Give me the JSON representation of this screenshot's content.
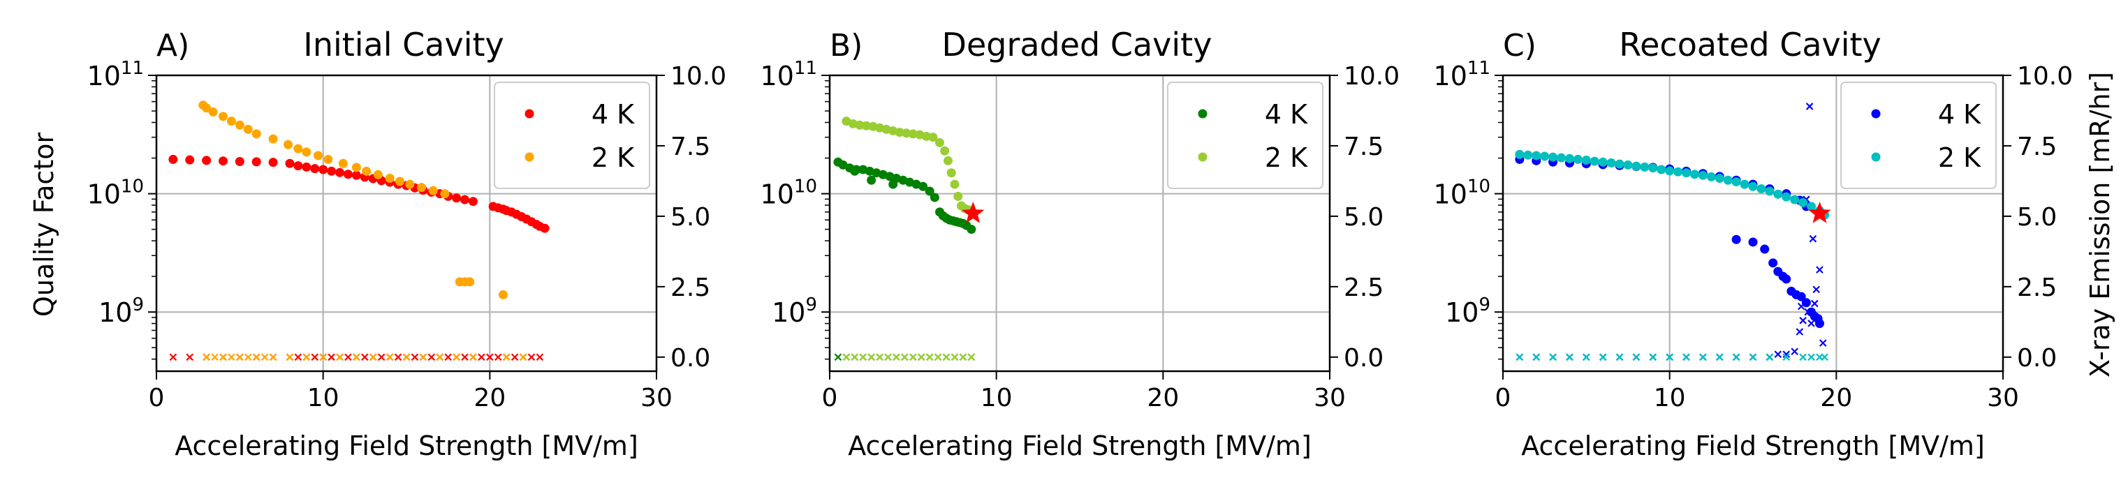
{
  "figure": {
    "y_left_label": "Quality Factor",
    "y_right_label": "X-ray Emission [mR/hr]"
  },
  "chart_data": [
    {
      "type": "scatter",
      "panel_letter": "A)",
      "title": "Initial Cavity",
      "xlabel": "Accelerating Field Strength [MV/m]",
      "xlim": [
        0,
        30
      ],
      "x_ticks": [
        "0",
        "10",
        "20",
        "30"
      ],
      "ylim_log10": [
        8.5,
        11
      ],
      "y_left_ticks": [
        "10^9",
        "10^10",
        "10^11"
      ],
      "y2lim": [
        -0.5,
        10
      ],
      "y_right_ticks": [
        "0.0",
        "2.5",
        "5.0",
        "7.5",
        "10.0"
      ],
      "grid": true,
      "legend_position": "top-right",
      "series": [
        {
          "name": "4 K",
          "color": "#ff0000",
          "q0_field": [
            1.0,
            2.0,
            3.0,
            4.0,
            5.0,
            6.0,
            7.0,
            8.0,
            8.5,
            9.0,
            9.5,
            10.0,
            10.5,
            11.0,
            11.5,
            12.0,
            12.5,
            13.0,
            13.5,
            14.0,
            14.5,
            15.0,
            15.5,
            16.0,
            16.5,
            17.0,
            17.5,
            18.0,
            18.5,
            19.0,
            20.2,
            20.5,
            20.8,
            21.0,
            21.3,
            21.6,
            21.9,
            22.2,
            22.5,
            22.8,
            23.0,
            23.3
          ],
          "q0_values": [
            19500000000.0,
            19300000000.0,
            19100000000.0,
            18900000000.0,
            18700000000.0,
            18600000000.0,
            18400000000.0,
            18000000000.0,
            17200000000.0,
            16800000000.0,
            16300000000.0,
            16000000000.0,
            15500000000.0,
            15100000000.0,
            14600000000.0,
            14300000000.0,
            13800000000.0,
            13400000000.0,
            12900000000.0,
            12500000000.0,
            12000000000.0,
            11700000000.0,
            11200000000.0,
            10700000000.0,
            10300000000.0,
            10000000000.0,
            9500000000.0,
            9200000000.0,
            8900000000.0,
            8600000000.0,
            7800000000.0,
            7600000000.0,
            7400000000.0,
            7200000000.0,
            7000000000.0,
            6700000000.0,
            6400000000.0,
            6100000000.0,
            5800000000.0,
            5500000000.0,
            5300000000.0,
            5100000000.0
          ],
          "xray_field": [
            1.0,
            2.0,
            3.0,
            4.0,
            5.0,
            6.0,
            7.0,
            8.0,
            8.5,
            9.0,
            9.5,
            10.0,
            10.5,
            11.0,
            11.5,
            12.0,
            12.5,
            13.0,
            13.5,
            14.0,
            14.5,
            15.0,
            15.5,
            16.0,
            16.5,
            17.0,
            17.5,
            18.0,
            18.5,
            19.0,
            19.5,
            20.0,
            20.5,
            21.0,
            21.5,
            22.0,
            22.5,
            23.0
          ],
          "xray_values": [
            0,
            0,
            0,
            0,
            0,
            0,
            0,
            0,
            0,
            0,
            0,
            0,
            0,
            0,
            0,
            0,
            0,
            0,
            0,
            0,
            0,
            0,
            0,
            0,
            0,
            0,
            0,
            0,
            0,
            0,
            0,
            0,
            0,
            0,
            0,
            0,
            0,
            0
          ]
        },
        {
          "name": "2 K",
          "color": "#ffa500",
          "q0_field": [
            2.8,
            3.0,
            3.4,
            4.0,
            4.5,
            5.0,
            5.5,
            6.0,
            7.0,
            7.9,
            8.5,
            9.0,
            9.7,
            10.3,
            11.2,
            12.0,
            12.6,
            13.3,
            14.0,
            14.6,
            15.2,
            15.9,
            16.6,
            17.3,
            18.2,
            18.5,
            18.8,
            20.8
          ],
          "q0_values": [
            56000000000.0,
            53000000000.0,
            49000000000.0,
            45000000000.0,
            41000000000.0,
            38000000000.0,
            35000000000.0,
            32000000000.0,
            29000000000.0,
            26000000000.0,
            24000000000.0,
            22500000000.0,
            21000000000.0,
            19500000000.0,
            18000000000.0,
            16700000000.0,
            15500000000.0,
            14500000000.0,
            13500000000.0,
            12700000000.0,
            12000000000.0,
            11300000000.0,
            10600000000.0,
            10000000000.0,
            1800000000.0,
            1800000000.0,
            1800000000.0,
            1400000000.0
          ],
          "xray_field": [
            3.0,
            3.5,
            4.0,
            4.5,
            5.0,
            5.5,
            6.0,
            6.5,
            7.0,
            8.0,
            9.0,
            10.0,
            11.0,
            12.0,
            13.0,
            14.0,
            15.0,
            16.0,
            17.0,
            18.0,
            19.0,
            21.0,
            22.0
          ],
          "xray_values": [
            0,
            0,
            0,
            0,
            0,
            0,
            0,
            0,
            0,
            0,
            0,
            0,
            0,
            0,
            0,
            0,
            0,
            0,
            0,
            0,
            0,
            0,
            0
          ]
        }
      ],
      "markers": []
    },
    {
      "type": "scatter",
      "panel_letter": "B)",
      "title": "Degraded Cavity",
      "xlabel": "Accelerating Field Strength [MV/m]",
      "xlim": [
        0,
        30
      ],
      "x_ticks": [
        "0",
        "10",
        "20",
        "30"
      ],
      "ylim_log10": [
        8.5,
        11
      ],
      "y_left_ticks": [
        "10^9",
        "10^10",
        "10^11"
      ],
      "y2lim": [
        -0.5,
        10
      ],
      "y_right_ticks": [
        "0.0",
        "2.5",
        "5.0",
        "7.5",
        "10.0"
      ],
      "grid": true,
      "legend_position": "top-right",
      "series": [
        {
          "name": "4 K",
          "color": "#008000",
          "q0_field": [
            0.5,
            0.8,
            1.2,
            1.6,
            2.0,
            2.4,
            2.8,
            3.2,
            3.6,
            4.0,
            4.4,
            4.8,
            5.2,
            5.6,
            6.0,
            6.3,
            6.6,
            6.8,
            7.0,
            7.2,
            7.4,
            7.6,
            7.8,
            8.0,
            8.2,
            8.5,
            2.5,
            3.8,
            1.5
          ],
          "q0_values": [
            18500000000.0,
            17500000000.0,
            16500000000.0,
            16000000000.0,
            16000000000.0,
            15500000000.0,
            15000000000.0,
            14500000000.0,
            14000000000.0,
            13500000000.0,
            13000000000.0,
            12500000000.0,
            12000000000.0,
            11500000000.0,
            10500000000.0,
            9300000000.0,
            7000000000.0,
            6500000000.0,
            6200000000.0,
            6000000000.0,
            5900000000.0,
            5800000000.0,
            5700000000.0,
            5600000000.0,
            5400000000.0,
            5000000000.0,
            13000000000.0,
            12000000000.0,
            15500000000.0
          ],
          "xray_field": [
            0.5,
            1.0,
            1.5,
            2.0,
            2.5,
            3.0,
            3.5,
            4.0,
            4.5,
            5.0,
            5.5,
            6.0,
            6.5,
            7.0,
            7.5,
            8.0,
            8.5
          ],
          "xray_values": [
            0,
            0,
            0,
            0,
            0,
            0,
            0,
            0,
            0,
            0,
            0,
            0,
            0,
            0,
            0,
            0,
            0
          ]
        },
        {
          "name": "2 K",
          "color": "#9acd32",
          "q0_field": [
            1.0,
            1.4,
            1.8,
            2.2,
            2.6,
            3.0,
            3.4,
            3.8,
            4.2,
            4.6,
            5.0,
            5.4,
            5.8,
            6.2,
            6.6,
            6.9,
            7.1,
            7.3,
            7.5,
            7.7,
            7.9,
            8.1,
            8.3,
            8.5
          ],
          "q0_values": [
            41000000000.0,
            39000000000.0,
            38000000000.0,
            37500000000.0,
            37000000000.0,
            36000000000.0,
            35000000000.0,
            34000000000.0,
            33000000000.0,
            32500000000.0,
            32000000000.0,
            31500000000.0,
            30500000000.0,
            30000000000.0,
            27000000000.0,
            23000000000.0,
            19000000000.0,
            15000000000.0,
            12000000000.0,
            9500000000.0,
            7900000000.0,
            7500000000.0,
            7300000000.0,
            7200000000.0
          ],
          "xray_field": [
            1.0,
            1.5,
            2.0,
            2.5,
            3.0,
            3.5,
            4.0,
            4.5,
            5.0,
            5.5,
            6.0,
            6.5,
            7.0,
            7.5,
            8.0,
            8.5
          ],
          "xray_values": [
            0,
            0,
            0,
            0,
            0,
            0,
            0,
            0,
            0,
            0,
            0,
            0,
            0,
            0,
            0,
            0
          ]
        }
      ],
      "markers": [
        {
          "x": 8.6,
          "q0": 6800000000.0,
          "color": "#ff0000",
          "symbol": "star"
        }
      ]
    },
    {
      "type": "scatter",
      "panel_letter": "C)",
      "title": "Recoated Cavity",
      "xlabel": "Accelerating Field Strength [MV/m]",
      "xlim": [
        0,
        30
      ],
      "x_ticks": [
        "0",
        "10",
        "20",
        "30"
      ],
      "ylim_log10": [
        8.5,
        11
      ],
      "y_left_ticks": [
        "10^9",
        "10^10",
        "10^11"
      ],
      "y2lim": [
        -0.5,
        10
      ],
      "y_right_ticks": [
        "0.0",
        "2.5",
        "5.0",
        "7.5",
        "10.0"
      ],
      "grid": true,
      "legend_position": "top-right",
      "series": [
        {
          "name": "4 K",
          "color": "#0000ff",
          "q0_field": [
            1.0,
            2.0,
            3.0,
            4.0,
            5.0,
            6.0,
            7.0,
            8.0,
            9.0,
            10.0,
            11.0,
            12.0,
            13.0,
            14.0,
            15.0,
            16.0,
            17.0,
            17.8,
            18.2,
            14.0,
            15.0,
            15.7,
            16.2,
            16.5,
            16.8,
            17.0,
            17.3,
            17.6,
            17.9,
            18.2,
            18.5,
            18.7,
            18.9,
            19.0
          ],
          "q0_values": [
            19500000000.0,
            19000000000.0,
            18500000000.0,
            18200000000.0,
            17900000000.0,
            17600000000.0,
            17300000000.0,
            17000000000.0,
            16700000000.0,
            16200000000.0,
            15500000000.0,
            14800000000.0,
            14000000000.0,
            13000000000.0,
            12000000000.0,
            11000000000.0,
            10000000000.0,
            8800000000.0,
            7800000000.0,
            4100000000.0,
            3900000000.0,
            3400000000.0,
            2600000000.0,
            2200000000.0,
            2000000000.0,
            1900000000.0,
            1500000000.0,
            1400000000.0,
            1350000000.0,
            1200000000.0,
            1000000000.0,
            920000000.0,
            880000000.0,
            800000000.0
          ],
          "xray_field": [
            1.0,
            2.0,
            3.0,
            4.0,
            5.0,
            6.0,
            7.0,
            8.0,
            9.0,
            10.0,
            11.0,
            12.0,
            13.0,
            14.0,
            15.0,
            16.0,
            16.5,
            17.0,
            17.5,
            17.8,
            18.0,
            18.3,
            18.5,
            18.7,
            18.8,
            19.0,
            19.2,
            18.6,
            18.4,
            18.2,
            17.9
          ],
          "xray_values": [
            0,
            0,
            0,
            0,
            0,
            0,
            0,
            0,
            0,
            0,
            0,
            0,
            0,
            0,
            0,
            0,
            0.1,
            0.1,
            0.2,
            0.9,
            1.3,
            1.6,
            1.2,
            1.9,
            2.4,
            3.1,
            0.5,
            4.2,
            8.9,
            5.6,
            1.8
          ]
        },
        {
          "name": "2 K",
          "color": "#00bfbf",
          "q0_field": [
            1.0,
            1.5,
            2.0,
            2.5,
            3.0,
            3.5,
            4.0,
            4.5,
            5.0,
            5.5,
            6.0,
            6.5,
            7.0,
            7.5,
            8.0,
            8.5,
            9.0,
            9.5,
            10.0,
            10.5,
            11.0,
            11.5,
            12.0,
            12.5,
            13.0,
            13.5,
            14.0,
            14.5,
            15.0,
            15.5,
            16.0,
            16.5,
            17.0,
            17.5,
            18.0,
            18.5,
            19.0,
            19.3
          ],
          "q0_values": [
            21500000000.0,
            21200000000.0,
            21000000000.0,
            20700000000.0,
            20400000000.0,
            20100000000.0,
            19800000000.0,
            19500000000.0,
            19200000000.0,
            18800000000.0,
            18500000000.0,
            18200000000.0,
            17800000000.0,
            17500000000.0,
            17100000000.0,
            16800000000.0,
            16500000000.0,
            16000000000.0,
            15600000000.0,
            15300000000.0,
            15000000000.0,
            14600000000.0,
            14300000000.0,
            13900000000.0,
            13500000000.0,
            13000000000.0,
            12600000000.0,
            12000000000.0,
            11500000000.0,
            11000000000.0,
            10500000000.0,
            9900000000.0,
            9400000000.0,
            8900000000.0,
            8400000000.0,
            7800000000.0,
            7200000000.0,
            6600000000.0
          ],
          "xray_field": [
            1.0,
            2.0,
            3.0,
            4.0,
            5.0,
            6.0,
            7.0,
            8.0,
            9.0,
            10.0,
            11.0,
            12.0,
            13.0,
            14.0,
            15.0,
            16.0,
            17.0,
            18.0,
            18.5,
            19.0,
            19.3
          ],
          "xray_values": [
            0,
            0,
            0,
            0,
            0,
            0,
            0,
            0,
            0,
            0,
            0,
            0,
            0,
            0,
            0,
            0,
            0,
            0,
            0,
            0,
            0
          ]
        }
      ],
      "markers": [
        {
          "x": 19.0,
          "q0": 6800000000.0,
          "color": "#ff0000",
          "symbol": "star"
        }
      ]
    }
  ]
}
